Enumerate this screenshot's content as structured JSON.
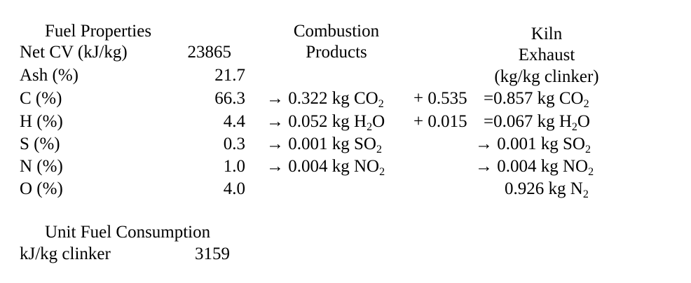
{
  "fuel": {
    "heading": "Fuel Properties",
    "rows": [
      {
        "label": "Net CV (kJ/kg)",
        "value": "23865"
      },
      {
        "label": "Ash (%)",
        "value": "21.7"
      },
      {
        "label": "C (%)",
        "value": "66.3"
      },
      {
        "label": "H (%)",
        "value": "4.4"
      },
      {
        "label": "S (%)",
        "value": "0.3"
      },
      {
        "label": "N (%)",
        "value": "1.0"
      },
      {
        "label": "O (%)",
        "value": "4.0"
      }
    ]
  },
  "combustion": {
    "heading_line1": "Combustion",
    "heading_line2": "Products",
    "arrow": "→",
    "rows": [
      {
        "amount": "0.322 kg",
        "species": "CO",
        "sub": "2"
      },
      {
        "amount": "0.052 kg",
        "species": "H",
        "sub": "2",
        "suffix": "O"
      },
      {
        "amount": "0.001 kg",
        "species": "SO",
        "sub": "2"
      },
      {
        "amount": "0.004 kg",
        "species": "NO",
        "sub": "2"
      }
    ]
  },
  "additions": [
    "+ 0.535",
    "+ 0.015"
  ],
  "kiln": {
    "heading_line1": "Kiln",
    "heading_line2": "Exhaust",
    "heading_line3": "(kg/kg clinker)",
    "rows": [
      {
        "prefix": "=",
        "amount": "0.857 kg",
        "species": "CO",
        "sub": "2"
      },
      {
        "prefix": "=",
        "amount": "0.067 kg",
        "species": "H",
        "sub": "2",
        "suffix": "O"
      },
      {
        "prefix": "→",
        "amount": "0.001 kg",
        "species": "SO",
        "sub": "2"
      },
      {
        "prefix": "→",
        "amount": "0.004 kg",
        "species": "NO",
        "sub": "2"
      },
      {
        "prefix": "",
        "amount": "0.926 kg",
        "species": "N",
        "sub": "2"
      }
    ]
  },
  "consumption": {
    "heading": "Unit Fuel Consumption",
    "label": "kJ/kg clinker",
    "value": "3159"
  }
}
